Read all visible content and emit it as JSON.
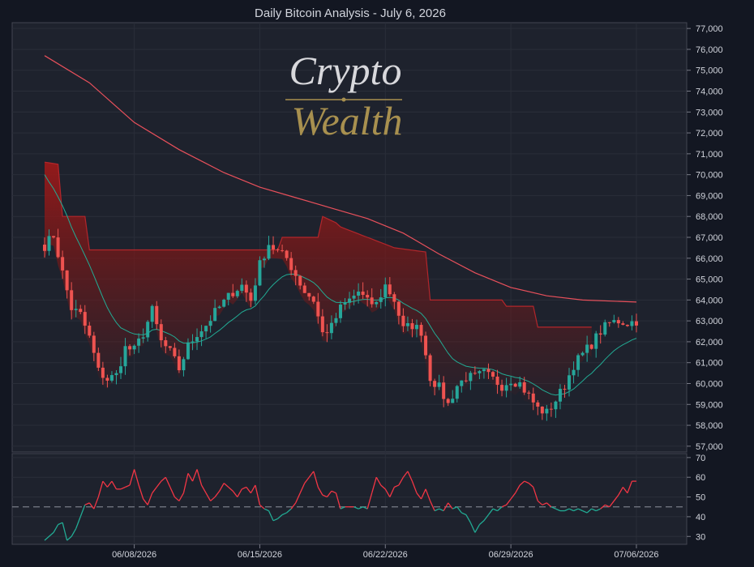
{
  "chart_data": [
    {
      "type": "candlestick",
      "title": "Daily Bitcoin Analysis - July 6, 2026",
      "y_range": [
        56800,
        77200
      ],
      "grid": true,
      "y_ticks": [
        "57,000",
        "58,000",
        "59,000",
        "60,000",
        "61,000",
        "62,000",
        "63,000",
        "64,000",
        "65,000",
        "66,000",
        "67,000",
        "68,000",
        "69,000",
        "70,000",
        "71,000",
        "72,000",
        "73,000",
        "74,000",
        "75,000",
        "76,000",
        "77,000"
      ],
      "x_ticks": [
        "06/08/2026",
        "06/15/2026",
        "06/22/2026",
        "06/29/2026",
        "07/06/2026"
      ],
      "x_tick_index": [
        20,
        48,
        76,
        104,
        132
      ],
      "candles_count": 133,
      "close_keypoints": [
        [
          0,
          66600
        ],
        [
          2,
          67100
        ],
        [
          4,
          65300
        ],
        [
          6,
          63600
        ],
        [
          8,
          63300
        ],
        [
          10,
          62200
        ],
        [
          12,
          60600
        ],
        [
          14,
          60200
        ],
        [
          16,
          60400
        ],
        [
          18,
          61700
        ],
        [
          20,
          61600
        ],
        [
          22,
          62400
        ],
        [
          24,
          63500
        ],
        [
          26,
          62000
        ],
        [
          28,
          61500
        ],
        [
          30,
          60700
        ],
        [
          32,
          61800
        ],
        [
          34,
          62400
        ],
        [
          36,
          62800
        ],
        [
          38,
          63400
        ],
        [
          40,
          63900
        ],
        [
          42,
          64400
        ],
        [
          44,
          64700
        ],
        [
          46,
          64000
        ],
        [
          48,
          65700
        ],
        [
          50,
          66700
        ],
        [
          52,
          66300
        ],
        [
          54,
          66000
        ],
        [
          56,
          65200
        ],
        [
          58,
          64400
        ],
        [
          60,
          64000
        ],
        [
          62,
          62400
        ],
        [
          64,
          62700
        ],
        [
          66,
          63600
        ],
        [
          68,
          64000
        ],
        [
          70,
          64400
        ],
        [
          72,
          63900
        ],
        [
          74,
          63800
        ],
        [
          76,
          64700
        ],
        [
          78,
          64000
        ],
        [
          80,
          62600
        ],
        [
          82,
          62800
        ],
        [
          84,
          62500
        ],
        [
          86,
          60300
        ],
        [
          88,
          59800
        ],
        [
          90,
          59000
        ],
        [
          92,
          59900
        ],
        [
          94,
          60300
        ],
        [
          96,
          60300
        ],
        [
          98,
          60500
        ],
        [
          100,
          60200
        ],
        [
          102,
          59900
        ],
        [
          104,
          60200
        ],
        [
          106,
          60000
        ],
        [
          108,
          59400
        ],
        [
          110,
          58800
        ],
        [
          112,
          58600
        ],
        [
          114,
          59200
        ],
        [
          116,
          59900
        ],
        [
          118,
          60900
        ],
        [
          120,
          61400
        ],
        [
          122,
          61900
        ],
        [
          124,
          62500
        ],
        [
          126,
          62900
        ],
        [
          128,
          63000
        ],
        [
          130,
          62900
        ],
        [
          132,
          63000
        ]
      ],
      "series": [
        {
          "values_at_keys": "close_keypoints"
        },
        {
          "points": [
            [
              0,
              75700
            ],
            [
              10,
              74400
            ],
            [
              20,
              72500
            ],
            [
              30,
              71200
            ],
            [
              40,
              70100
            ],
            [
              48,
              69400
            ],
            [
              56,
              68900
            ],
            [
              64,
              68400
            ],
            [
              72,
              67900
            ],
            [
              80,
              67200
            ],
            [
              88,
              66200
            ],
            [
              96,
              65300
            ],
            [
              104,
              64600
            ],
            [
              112,
              64200
            ],
            [
              120,
              64000
            ],
            [
              132,
              63900
            ]
          ]
        },
        {
          "points": [
            [
              0,
              70600
            ],
            [
              3,
              70500
            ],
            [
              4,
              68000
            ],
            [
              9,
              68000
            ],
            [
              10,
              66400
            ],
            [
              52,
              66400
            ],
            [
              53,
              67000
            ],
            [
              61,
              67000
            ],
            [
              62,
              68000
            ],
            [
              65,
              67700
            ],
            [
              66,
              67500
            ],
            [
              78,
              66500
            ],
            [
              85,
              66300
            ],
            [
              86,
              64000
            ],
            [
              102,
              64000
            ],
            [
              103,
              63700
            ],
            [
              109,
              63700
            ],
            [
              110,
              62700
            ],
            [
              122,
              62700
            ]
          ]
        }
      ]
    },
    {
      "type": "line",
      "y_range": [
        26,
        72
      ],
      "y_ticks": [
        "30",
        "40",
        "50",
        "60",
        "70"
      ],
      "reference_line": 45,
      "colors": {
        "above": "#f23645",
        "below": "#22ab94"
      },
      "keypoints": [
        [
          0,
          28
        ],
        [
          2,
          32
        ],
        [
          3,
          36
        ],
        [
          4,
          37
        ],
        [
          5,
          28
        ],
        [
          6,
          30
        ],
        [
          7,
          34
        ],
        [
          8,
          40
        ],
        [
          9,
          46
        ],
        [
          10,
          47
        ],
        [
          11,
          44
        ],
        [
          12,
          50
        ],
        [
          13,
          58
        ],
        [
          14,
          55
        ],
        [
          15,
          58
        ],
        [
          16,
          54
        ],
        [
          17,
          54
        ],
        [
          18,
          55
        ],
        [
          19,
          56
        ],
        [
          20,
          64
        ],
        [
          21,
          56
        ],
        [
          22,
          49
        ],
        [
          23,
          46
        ],
        [
          24,
          52
        ],
        [
          25,
          55
        ],
        [
          26,
          58
        ],
        [
          27,
          60
        ],
        [
          28,
          55
        ],
        [
          29,
          50
        ],
        [
          30,
          48
        ],
        [
          31,
          52
        ],
        [
          32,
          62
        ],
        [
          33,
          58
        ],
        [
          34,
          64
        ],
        [
          35,
          56
        ],
        [
          36,
          52
        ],
        [
          37,
          48
        ],
        [
          38,
          50
        ],
        [
          39,
          53
        ],
        [
          40,
          57
        ],
        [
          41,
          55
        ],
        [
          42,
          53
        ],
        [
          43,
          50
        ],
        [
          44,
          54
        ],
        [
          45,
          55
        ],
        [
          46,
          52
        ],
        [
          47,
          56
        ],
        [
          48,
          46
        ],
        [
          49,
          44
        ],
        [
          50,
          43
        ],
        [
          51,
          38
        ],
        [
          52,
          39
        ],
        [
          53,
          41
        ],
        [
          54,
          42
        ],
        [
          55,
          44
        ],
        [
          56,
          47
        ],
        [
          57,
          52
        ],
        [
          58,
          57
        ],
        [
          59,
          60
        ],
        [
          60,
          63
        ],
        [
          61,
          55
        ],
        [
          62,
          51
        ],
        [
          63,
          50
        ],
        [
          64,
          53
        ],
        [
          65,
          52
        ],
        [
          66,
          44
        ],
        [
          67,
          45
        ],
        [
          68,
          45
        ],
        [
          69,
          45
        ],
        [
          70,
          44
        ],
        [
          71,
          45
        ],
        [
          72,
          44
        ],
        [
          73,
          52
        ],
        [
          74,
          60
        ],
        [
          75,
          56
        ],
        [
          76,
          54
        ],
        [
          77,
          50
        ],
        [
          78,
          55
        ],
        [
          79,
          56
        ],
        [
          80,
          60
        ],
        [
          81,
          63
        ],
        [
          82,
          58
        ],
        [
          83,
          52
        ],
        [
          84,
          49
        ],
        [
          85,
          54
        ],
        [
          86,
          48
        ],
        [
          87,
          43
        ],
        [
          88,
          44
        ],
        [
          89,
          43
        ],
        [
          90,
          47
        ],
        [
          91,
          44
        ],
        [
          92,
          45
        ],
        [
          93,
          42
        ],
        [
          94,
          41
        ],
        [
          95,
          37
        ],
        [
          96,
          32
        ],
        [
          97,
          36
        ],
        [
          98,
          38
        ],
        [
          99,
          41
        ],
        [
          100,
          44
        ],
        [
          101,
          43
        ],
        [
          102,
          45
        ],
        [
          103,
          46
        ],
        [
          104,
          49
        ],
        [
          105,
          52
        ],
        [
          106,
          56
        ],
        [
          107,
          58
        ],
        [
          108,
          57
        ],
        [
          109,
          55
        ],
        [
          110,
          48
        ],
        [
          111,
          46
        ],
        [
          112,
          47
        ],
        [
          113,
          45
        ],
        [
          114,
          44
        ],
        [
          115,
          43
        ],
        [
          116,
          43
        ],
        [
          117,
          44
        ],
        [
          118,
          43
        ],
        [
          119,
          44
        ],
        [
          120,
          43
        ],
        [
          121,
          42
        ],
        [
          122,
          44
        ],
        [
          123,
          43
        ],
        [
          124,
          44
        ],
        [
          125,
          46
        ],
        [
          126,
          45
        ],
        [
          127,
          48
        ],
        [
          128,
          51
        ],
        [
          129,
          55
        ],
        [
          130,
          52
        ],
        [
          131,
          58
        ],
        [
          132,
          58
        ]
      ]
    }
  ],
  "watermark": {
    "line1": "Crypto",
    "line2": "Wealth"
  },
  "colors": {
    "up": "#26a69a",
    "down": "#ef5350",
    "ma_red": "#e8505b",
    "ma_green": "#22ab94",
    "grid": "#2a2e39",
    "background": "#1e222d"
  }
}
